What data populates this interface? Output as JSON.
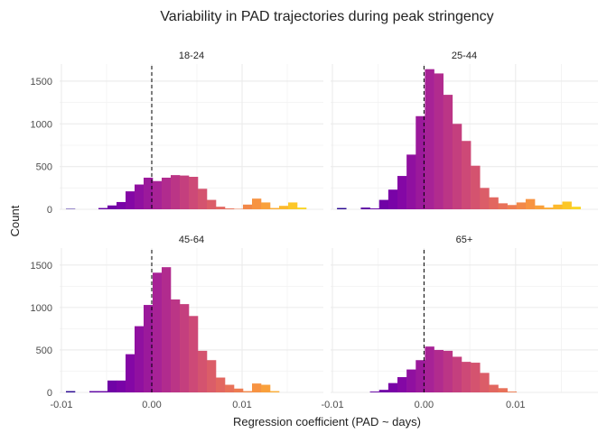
{
  "chart_data": {
    "type": "bar",
    "subtype": "faceted-histogram",
    "title": "Variability in PAD trajectories during peak stringency",
    "xlabel": "Regression coefficient (PAD ~ days)",
    "ylabel": "Count",
    "xlim": [
      -0.0102,
      0.019
    ],
    "ylim": [
      0,
      1700
    ],
    "x_ticks": [
      -0.01,
      0.0,
      0.01
    ],
    "x_tick_labels": [
      "-0.01",
      "0.00",
      "0.01"
    ],
    "y_ticks": [
      0,
      500,
      1000,
      1500
    ],
    "y_tick_labels": [
      "0",
      "500",
      "1000",
      "1500"
    ],
    "bin_start": -0.0059,
    "bin_width": 0.001,
    "reference_line": {
      "x": 0.0,
      "style": "dashed"
    },
    "grid": true,
    "legend": "none",
    "palette": "plasma",
    "palette_colors": [
      "#0d0887",
      "#5b02a3",
      "#7e03a8",
      "#a92395",
      "#cc4778",
      "#e56b5d",
      "#f89441",
      "#fdc328",
      "#f0f921"
    ],
    "facets": [
      {
        "label": "18-24",
        "bars": [
          [
            -0.0095,
            5
          ],
          [
            -0.0059,
            15
          ],
          [
            -0.0049,
            45
          ],
          [
            -0.0039,
            85
          ],
          [
            -0.0029,
            210
          ],
          [
            -0.0019,
            290
          ],
          [
            -0.0009,
            370
          ],
          [
            0.0001,
            330
          ],
          [
            0.0011,
            370
          ],
          [
            0.0021,
            400
          ],
          [
            0.0031,
            395
          ],
          [
            0.0041,
            380
          ],
          [
            0.0051,
            240
          ],
          [
            0.0061,
            110
          ],
          [
            0.0071,
            30
          ],
          [
            0.0081,
            10
          ],
          [
            0.0091,
            5
          ],
          [
            0.0101,
            55
          ],
          [
            0.0111,
            125
          ],
          [
            0.0121,
            80
          ],
          [
            0.0131,
            15
          ],
          [
            0.0141,
            40
          ],
          [
            0.0151,
            80
          ],
          [
            0.0161,
            20
          ]
        ]
      },
      {
        "label": "25-44",
        "bars": [
          [
            -0.0095,
            15
          ],
          [
            -0.0069,
            20
          ],
          [
            -0.0059,
            10
          ],
          [
            -0.0049,
            110
          ],
          [
            -0.0039,
            230
          ],
          [
            -0.0029,
            390
          ],
          [
            -0.0019,
            640
          ],
          [
            -0.0009,
            1090
          ],
          [
            0.0001,
            1640
          ],
          [
            0.0011,
            1590
          ],
          [
            0.0021,
            1340
          ],
          [
            0.0031,
            1000
          ],
          [
            0.0041,
            800
          ],
          [
            0.0051,
            510
          ],
          [
            0.0061,
            250
          ],
          [
            0.0071,
            140
          ],
          [
            0.0081,
            70
          ],
          [
            0.0091,
            50
          ],
          [
            0.0101,
            80
          ],
          [
            0.0111,
            120
          ],
          [
            0.0121,
            45
          ],
          [
            0.0131,
            20
          ],
          [
            0.0141,
            55
          ],
          [
            0.0151,
            90
          ],
          [
            0.0161,
            30
          ]
        ]
      },
      {
        "label": "45-64",
        "bars": [
          [
            -0.0095,
            15
          ],
          [
            -0.0069,
            15
          ],
          [
            -0.0059,
            15
          ],
          [
            -0.0049,
            140
          ],
          [
            -0.0039,
            140
          ],
          [
            -0.0029,
            450
          ],
          [
            -0.0019,
            780
          ],
          [
            -0.0009,
            1030
          ],
          [
            0.0001,
            1410
          ],
          [
            0.0011,
            1475
          ],
          [
            0.0021,
            1095
          ],
          [
            0.0031,
            1040
          ],
          [
            0.0041,
            900
          ],
          [
            0.0051,
            490
          ],
          [
            0.0061,
            380
          ],
          [
            0.0071,
            175
          ],
          [
            0.0081,
            90
          ],
          [
            0.0091,
            45
          ],
          [
            0.0101,
            15
          ],
          [
            0.0111,
            105
          ],
          [
            0.0121,
            90
          ],
          [
            0.0131,
            15
          ]
        ]
      },
      {
        "label": "65+",
        "bars": [
          [
            -0.0059,
            10
          ],
          [
            -0.0049,
            30
          ],
          [
            -0.0039,
            110
          ],
          [
            -0.0029,
            180
          ],
          [
            -0.0019,
            270
          ],
          [
            -0.0009,
            380
          ],
          [
            0.0001,
            540
          ],
          [
            0.0011,
            500
          ],
          [
            0.0021,
            490
          ],
          [
            0.0031,
            420
          ],
          [
            0.0041,
            360
          ],
          [
            0.0051,
            350
          ],
          [
            0.0061,
            230
          ],
          [
            0.0071,
            90
          ],
          [
            0.0081,
            50
          ],
          [
            0.0091,
            10
          ]
        ]
      }
    ]
  }
}
